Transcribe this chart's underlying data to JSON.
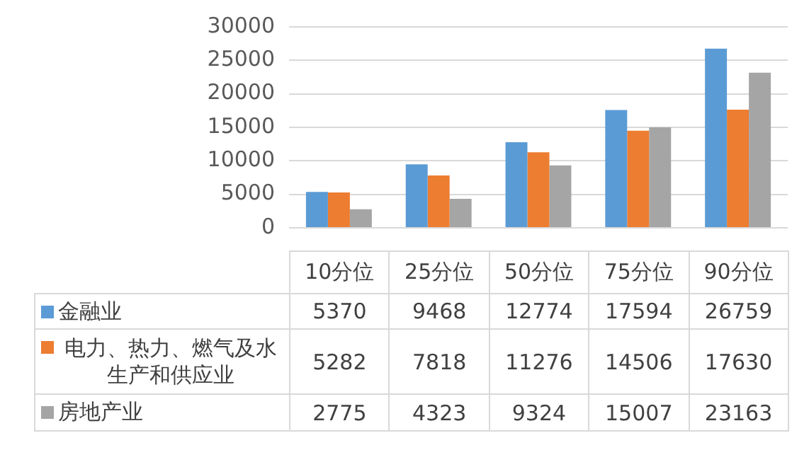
{
  "chart_data": {
    "type": "bar",
    "categories": [
      "10分位",
      "25分位",
      "50分位",
      "75分位",
      "90分位"
    ],
    "series": [
      {
        "name": "金融业",
        "color": "#5b9bd5",
        "values": [
          5370,
          9468,
          12774,
          17594,
          26759
        ]
      },
      {
        "name": "电力、热力、燃气及水生产和供应业",
        "color": "#ed7d31",
        "values": [
          5282,
          7818,
          11276,
          14506,
          17630
        ]
      },
      {
        "name": "房地产业",
        "color": "#a5a5a5",
        "values": [
          2775,
          4323,
          9324,
          15007,
          23163
        ]
      }
    ],
    "ylim": [
      0,
      30000
    ],
    "yticks": [
      0,
      5000,
      10000,
      15000,
      20000,
      25000,
      30000
    ],
    "grid": "y",
    "legend": "bottom",
    "data_labels": true
  }
}
